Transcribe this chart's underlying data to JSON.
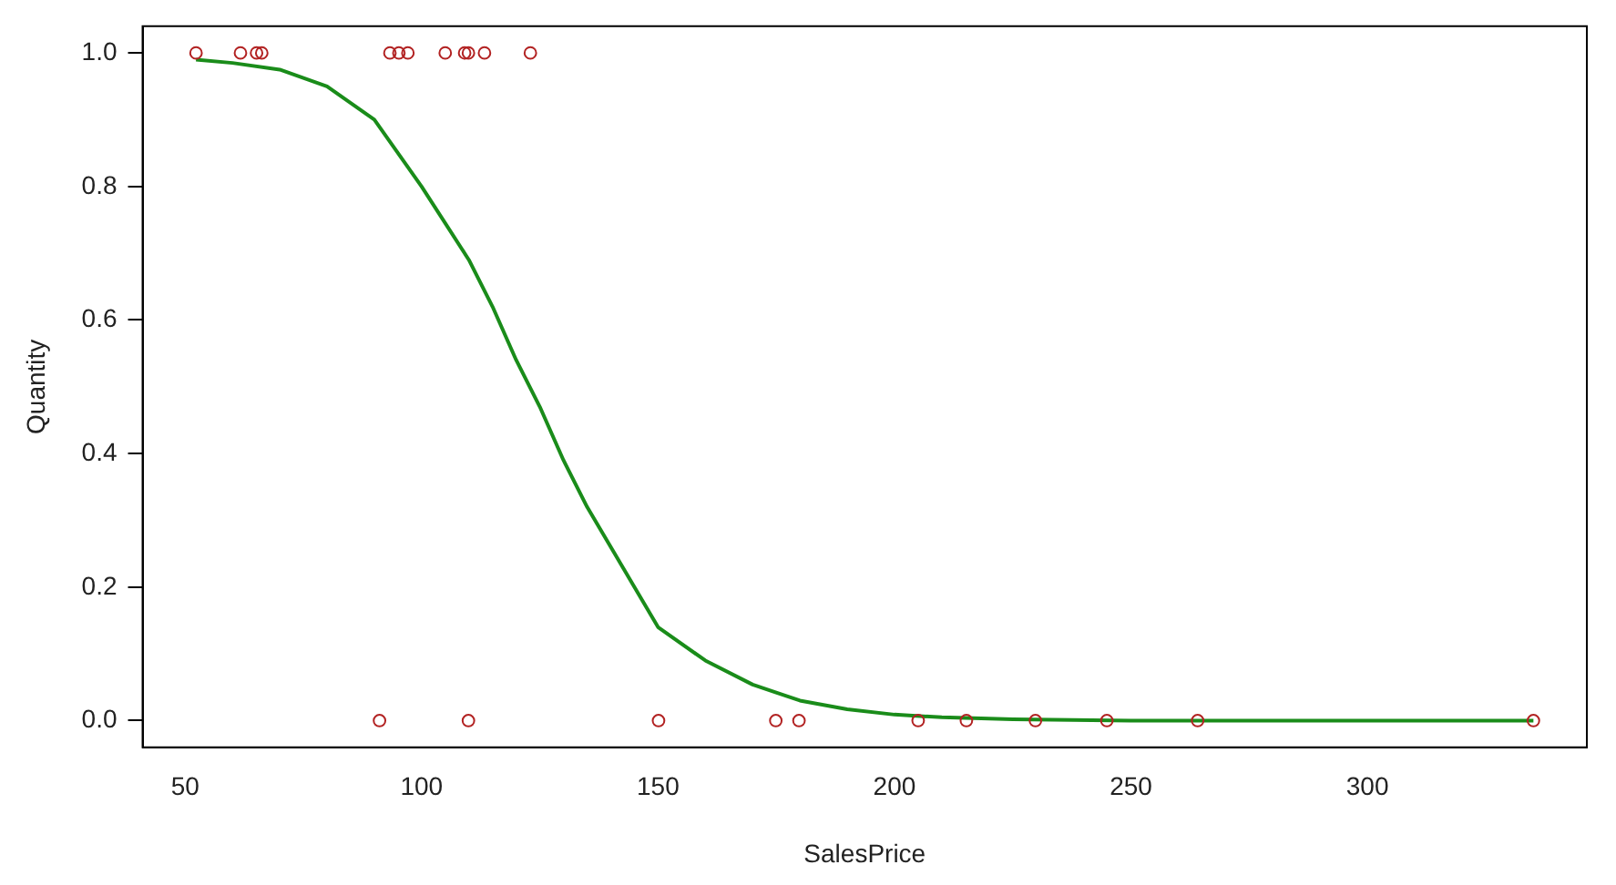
{
  "chart_data": {
    "type": "scatter",
    "xlabel": "SalesPrice",
    "ylabel": "Quantity",
    "xlim": [
      41,
      346.4
    ],
    "ylim": [
      -0.04,
      1.04
    ],
    "xticks": [
      50,
      100,
      150,
      200,
      250,
      300
    ],
    "yticks": [
      {
        "value": 0,
        "label": "0.0"
      },
      0.2,
      0.4,
      0.6,
      0.8,
      {
        "value": 1,
        "label": "1.0"
      }
    ],
    "grid": false,
    "legend": false,
    "marker": "circle",
    "series": [
      {
        "color": "#b22222",
        "x": [
          52.3,
          61.7,
          65.1,
          66.2,
          93.3,
          95.2,
          97.1,
          105,
          109.1,
          109.9,
          113.3,
          123,
          91.1,
          109.9,
          150.1,
          174.9,
          179.8,
          205,
          215.2,
          229.8,
          244.9,
          264.1,
          335.1
        ],
        "values": [
          1,
          1,
          1,
          1,
          1,
          1,
          1,
          1,
          1,
          1,
          1,
          1,
          0,
          0,
          0,
          0,
          0,
          0,
          0,
          0,
          0,
          0,
          0
        ]
      },
      {
        "type": "line",
        "color": "#1a8c1a",
        "marker": "none",
        "line_style": "solid",
        "x": [
          52.3,
          60,
          70,
          80,
          90,
          100,
          110,
          115,
          120,
          125,
          130,
          135,
          140,
          150,
          160,
          170,
          180,
          190,
          200,
          210,
          225,
          250,
          335.1
        ],
        "values": [
          0.99,
          0.985,
          0.975,
          0.95,
          0.9,
          0.8,
          0.69,
          0.62,
          0.54,
          0.47,
          0.39,
          0.32,
          0.26,
          0.14,
          0.09,
          0.054,
          0.03,
          0.017,
          0.009,
          0.005,
          0.002,
          0,
          0
        ]
      }
    ]
  }
}
